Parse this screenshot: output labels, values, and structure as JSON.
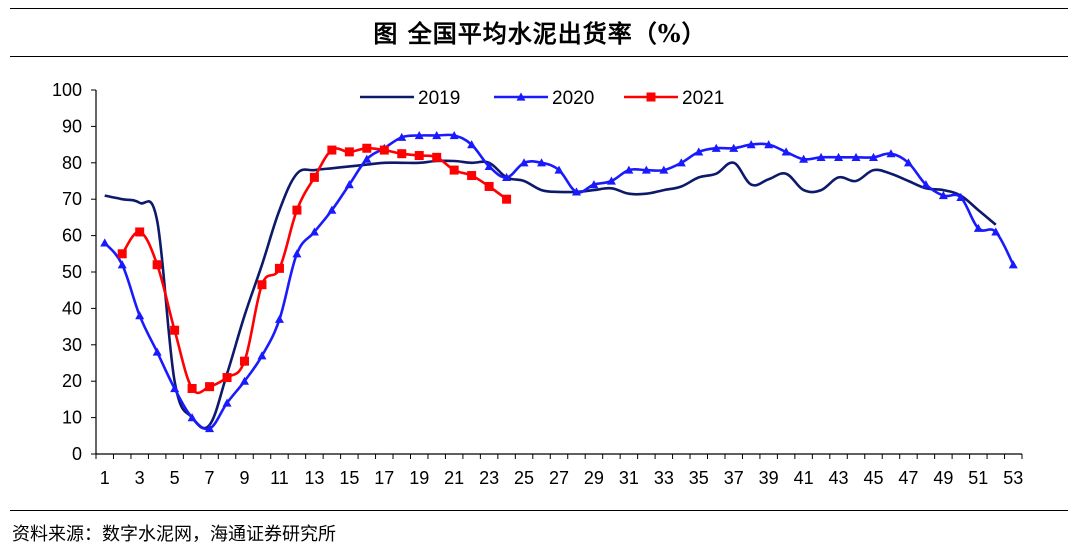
{
  "title": "图  全国平均水泥出货率（%）",
  "source": "资料来源：数字水泥网，海通证券研究所",
  "chart_data": {
    "type": "line",
    "title": "图  全国平均水泥出货率（%）",
    "xlabel": "",
    "ylabel": "",
    "xlim": [
      1,
      53
    ],
    "ylim": [
      0,
      100
    ],
    "x_ticks": [
      1,
      3,
      5,
      7,
      9,
      11,
      13,
      15,
      17,
      19,
      21,
      23,
      25,
      27,
      29,
      31,
      33,
      35,
      37,
      39,
      41,
      43,
      45,
      47,
      49,
      51,
      53
    ],
    "y_ticks": [
      0,
      10,
      20,
      30,
      40,
      50,
      60,
      70,
      80,
      90,
      100
    ],
    "grid": false,
    "legend_position": "top-center",
    "series": [
      {
        "name": "2019",
        "color": "#0d1a6b",
        "marker": "none",
        "x": [
          1,
          2,
          3,
          4,
          5,
          6,
          7,
          8,
          9,
          10,
          11,
          12,
          13,
          14,
          15,
          16,
          17,
          18,
          19,
          20,
          21,
          22,
          23,
          24,
          25,
          26,
          27,
          28,
          29,
          30,
          31,
          32,
          33,
          34,
          35,
          36,
          37,
          38,
          39,
          40,
          41,
          42,
          43,
          44,
          45,
          46,
          47,
          48,
          49,
          50,
          51,
          52
        ],
        "values": [
          71,
          70,
          69,
          64,
          20,
          10,
          8,
          22,
          38,
          52,
          67,
          77,
          78,
          78.5,
          79,
          79.5,
          80,
          80,
          80,
          80.5,
          80.5,
          80,
          80,
          76,
          75,
          72.5,
          72,
          72,
          72.5,
          73,
          71.5,
          71.5,
          72.5,
          73.5,
          76,
          77,
          80,
          74,
          75.5,
          77,
          72.5,
          72.5,
          76,
          75,
          78,
          77,
          75,
          73,
          72.5,
          71,
          67,
          63
        ]
      },
      {
        "name": "2020",
        "color": "#1a1aff",
        "marker": "triangle",
        "x": [
          1,
          2,
          3,
          4,
          5,
          6,
          7,
          8,
          9,
          10,
          11,
          12,
          13,
          14,
          15,
          16,
          17,
          18,
          19,
          20,
          21,
          22,
          23,
          24,
          25,
          26,
          27,
          28,
          29,
          30,
          31,
          32,
          33,
          34,
          35,
          36,
          37,
          38,
          39,
          40,
          41,
          42,
          43,
          44,
          45,
          46,
          47,
          48,
          49,
          50,
          51,
          52,
          53
        ],
        "values": [
          58,
          52,
          38,
          28,
          18,
          10,
          7,
          14,
          20,
          27,
          37,
          55,
          61,
          67,
          74,
          81,
          84,
          87,
          87.5,
          87.5,
          87.5,
          85,
          79,
          76,
          80,
          80,
          78,
          72,
          74,
          75,
          78,
          78,
          78,
          80,
          83,
          84,
          84,
          85,
          85,
          83,
          81,
          81.5,
          81.5,
          81.5,
          81.5,
          82.5,
          80,
          74,
          71,
          70.5,
          62,
          61,
          52
        ]
      },
      {
        "name": "2021",
        "color": "#ff0000",
        "marker": "square",
        "x": [
          2,
          3,
          4,
          5,
          6,
          7,
          8,
          9,
          10,
          11,
          12,
          13,
          14,
          15,
          16,
          17,
          18,
          19,
          20,
          21,
          22,
          23,
          24
        ],
        "values": [
          55,
          61,
          52,
          34,
          18,
          18.5,
          21,
          25.5,
          46.5,
          51,
          67,
          76,
          83.5,
          83,
          84,
          83.5,
          82.5,
          82,
          81.5,
          78,
          76.5,
          73.5,
          70
        ]
      }
    ]
  }
}
